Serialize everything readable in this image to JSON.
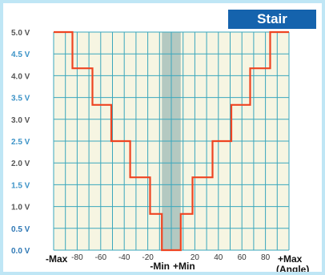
{
  "badge": "Stair",
  "chart_data": {
    "type": "line",
    "title": "Stair",
    "xlabel": "(Angle)",
    "ylabel": "",
    "ylim": [
      0,
      5
    ],
    "xlim": [
      -100,
      100
    ],
    "grid": true,
    "y_tick_labels": [
      "0.0 V",
      "0.5 V",
      "1.0 V",
      "1.5 V",
      "2.0 V",
      "2.5 V",
      "3.0 V",
      "3.5 V",
      "4.0 V",
      "4.5 V",
      "5.0 V"
    ],
    "y_ticks": [
      0,
      0.5,
      1,
      1.5,
      2,
      2.5,
      3,
      3.5,
      4,
      4.5,
      5
    ],
    "x_tick_labels": [
      "-80",
      "-60",
      "-40",
      "-20",
      "20",
      "40",
      "60",
      "80"
    ],
    "x_ticks": [
      -80,
      -60,
      -40,
      -20,
      20,
      40,
      60,
      80
    ],
    "x_end_labels": {
      "left": "-Max",
      "right": "+Max",
      "right_sub": "(Angle)"
    },
    "x_center_labels": {
      "left": "-Min",
      "right": "+Min"
    },
    "dead_band": [
      -8,
      8
    ],
    "series": [
      {
        "x": [
          -100,
          -84,
          -84,
          -67,
          -67,
          -51,
          -51,
          -35,
          -35,
          -18,
          -18,
          -8,
          -8,
          8,
          8,
          18,
          18,
          35,
          35,
          51,
          51,
          67,
          67,
          84,
          84,
          100
        ],
        "y": [
          5,
          5,
          4.17,
          4.17,
          3.33,
          3.33,
          2.5,
          2.5,
          1.67,
          1.67,
          0.83,
          0.83,
          0,
          0,
          0.83,
          0.83,
          1.67,
          1.67,
          2.5,
          2.5,
          3.33,
          3.33,
          4.17,
          4.17,
          5,
          5
        ]
      }
    ],
    "colors": {
      "line": "#ee4422",
      "grid": "#3aa7bd",
      "plot_bg": "#f6f5e2",
      "dead_band": "#b4c9c1",
      "ytick_dark": "#555555",
      "ytick_light": "#3c93c7",
      "ytick_zero": "#2f78b5"
    }
  }
}
